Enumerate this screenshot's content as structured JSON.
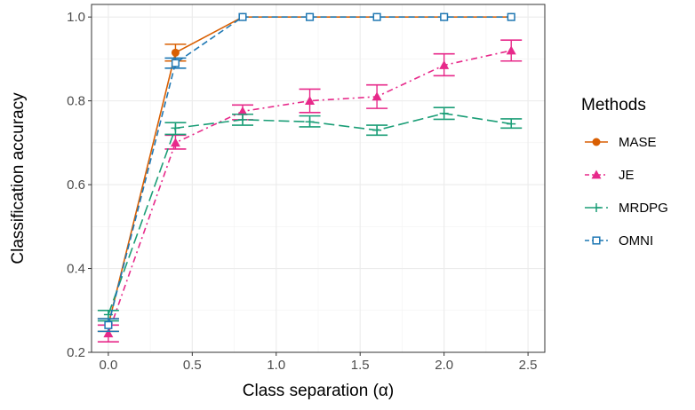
{
  "chart_data": {
    "type": "line",
    "xlabel": "Class separation (α)",
    "ylabel": "Classification accuracy",
    "xlim": [
      -0.1,
      2.6
    ],
    "ylim": [
      0.2,
      1.03
    ],
    "xticks": [
      0.0,
      0.5,
      1.0,
      1.5,
      2.0,
      2.5
    ],
    "xtick_labels": [
      "0.0",
      "0.5",
      "1.0",
      "1.5",
      "2.0",
      "2.5"
    ],
    "yticks": [
      0.2,
      0.4,
      0.6,
      0.8,
      1.0
    ],
    "ytick_labels": [
      "0.2",
      "0.4",
      "0.6",
      "0.8",
      "1.0"
    ],
    "grid": true,
    "legend_title": "Methods",
    "legend_position": "right",
    "x": [
      0.0,
      0.4,
      0.8,
      1.2,
      1.6,
      2.0,
      2.4
    ],
    "series": [
      {
        "name": "MASE",
        "color": "#d95f02",
        "marker": "circle",
        "dash": "solid",
        "values": [
          0.265,
          0.915,
          1.0,
          1.0,
          1.0,
          1.0,
          1.0
        ],
        "err_low": [
          0.25,
          0.895,
          1.0,
          1.0,
          1.0,
          1.0,
          1.0
        ],
        "err_high": [
          0.28,
          0.935,
          1.0,
          1.0,
          1.0,
          1.0,
          1.0
        ]
      },
      {
        "name": "JE",
        "color": "#e7298a",
        "marker": "triangle",
        "dash": "dashdot",
        "values": [
          0.245,
          0.7,
          0.775,
          0.8,
          0.81,
          0.885,
          0.92
        ],
        "err_low": [
          0.225,
          0.685,
          0.755,
          0.772,
          0.782,
          0.86,
          0.895
        ],
        "err_high": [
          0.265,
          0.718,
          0.79,
          0.828,
          0.838,
          0.912,
          0.945
        ]
      },
      {
        "name": "MRDPG",
        "color": "#1b9e77",
        "marker": "plus",
        "dash": "longdash",
        "values": [
          0.29,
          0.735,
          0.755,
          0.75,
          0.73,
          0.77,
          0.745
        ],
        "err_low": [
          0.275,
          0.72,
          0.742,
          0.738,
          0.718,
          0.756,
          0.735
        ],
        "err_high": [
          0.3,
          0.748,
          0.768,
          0.764,
          0.742,
          0.784,
          0.757
        ]
      },
      {
        "name": "OMNI",
        "color": "#1f78b4",
        "marker": "square",
        "dash": "dashed",
        "values": [
          0.265,
          0.89,
          1.0,
          1.0,
          1.0,
          1.0,
          1.0
        ],
        "err_low": [
          0.25,
          0.878,
          1.0,
          1.0,
          1.0,
          1.0,
          1.0
        ],
        "err_high": [
          0.28,
          0.902,
          1.0,
          1.0,
          1.0,
          1.0,
          1.0
        ]
      }
    ]
  }
}
